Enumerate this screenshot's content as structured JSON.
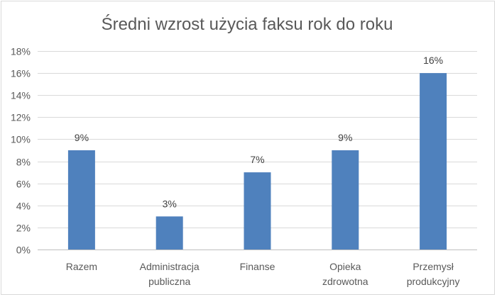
{
  "chart_data": {
    "type": "bar",
    "title": "Średni wzrost użycia faksu rok do roku",
    "categories": [
      [
        "Razem"
      ],
      [
        "Administracja",
        "publiczna"
      ],
      [
        "Finanse"
      ],
      [
        "Opieka",
        "zdrowotna"
      ],
      [
        "Przemysł",
        "produkcyjny"
      ]
    ],
    "values": [
      9,
      3,
      7,
      9,
      16
    ],
    "data_labels": [
      "9%",
      "3%",
      "7%",
      "9%",
      "16%"
    ],
    "ylim": [
      0,
      18
    ],
    "yticks": [
      0,
      2,
      4,
      6,
      8,
      10,
      12,
      14,
      16,
      18
    ],
    "ytick_labels": [
      "0%",
      "2%",
      "4%",
      "6%",
      "8%",
      "10%",
      "12%",
      "14%",
      "16%",
      "18%"
    ],
    "grid": true,
    "legend": "none",
    "bar_color": "#4f81bd"
  }
}
